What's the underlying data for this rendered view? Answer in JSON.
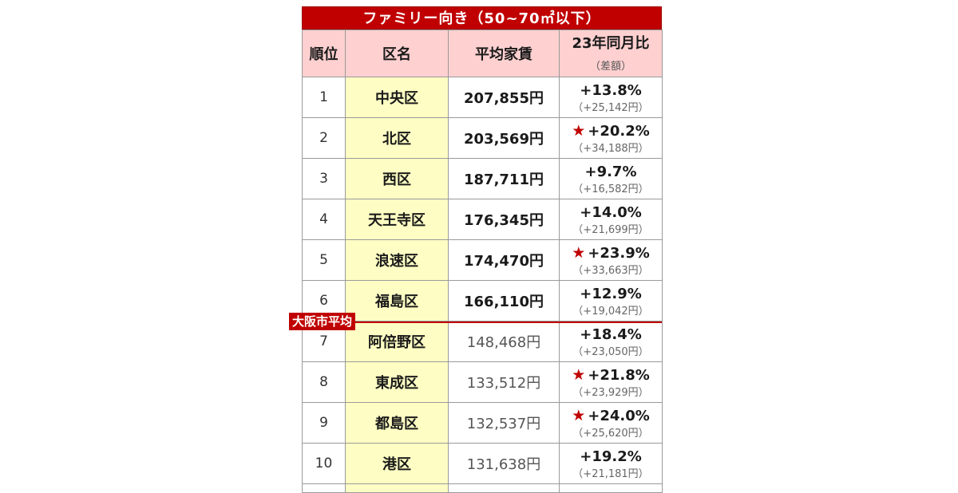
{
  "title": "ファミリー向き（50~70㎡以下）",
  "headers": {
    "rank": "順位",
    "ward": "区名",
    "rent": "平均家賃",
    "change": "23年同月比",
    "change_sub": "（差額）"
  },
  "rows": [
    {
      "rank": "1",
      "ward": "中央区",
      "rent": "207,855円",
      "pct": "+13.8%",
      "diff": "（+25,142円）",
      "star": false
    },
    {
      "rank": "2",
      "ward": "北区",
      "rent": "203,569円",
      "pct": "+20.2%",
      "diff": "（+34,188円）",
      "star": true
    },
    {
      "rank": "3",
      "ward": "西区",
      "rent": "187,711円",
      "pct": "+9.7%",
      "diff": "（+16,582円）",
      "star": false
    },
    {
      "rank": "4",
      "ward": "天王寺区",
      "rent": "176,345円",
      "pct": "+14.0%",
      "diff": "（+21,699円）",
      "star": false
    },
    {
      "rank": "5",
      "ward": "浪速区",
      "rent": "174,470円",
      "pct": "+23.9%",
      "diff": "（+33,663円）",
      "star": true
    },
    {
      "rank": "6",
      "ward": "福島区",
      "rent": "166,110円",
      "pct": "+12.9%",
      "diff": "（+19,042円）",
      "star": false
    },
    {
      "rank": "7",
      "ward": "阿倍野区",
      "rent": "148,468円",
      "pct": "+18.4%",
      "diff": "（+23,050円）",
      "star": false
    },
    {
      "rank": "8",
      "ward": "東成区",
      "rent": "133,512円",
      "pct": "+21.8%",
      "diff": "（+23,929円）",
      "star": true
    },
    {
      "rank": "9",
      "ward": "都島区",
      "rent": "132,537円",
      "pct": "+24.0%",
      "diff": "（+25,620円）",
      "star": true
    },
    {
      "rank": "10",
      "ward": "港区",
      "rent": "131,638円",
      "pct": "+19.2%",
      "diff": "（+21,181円）",
      "star": false
    }
  ],
  "average_label": "大阪市平均",
  "star_glyph": "★",
  "colors": {
    "accent": "#c00000",
    "header_bg": "#ffd0d0",
    "ward_bg": "#fefec4"
  }
}
